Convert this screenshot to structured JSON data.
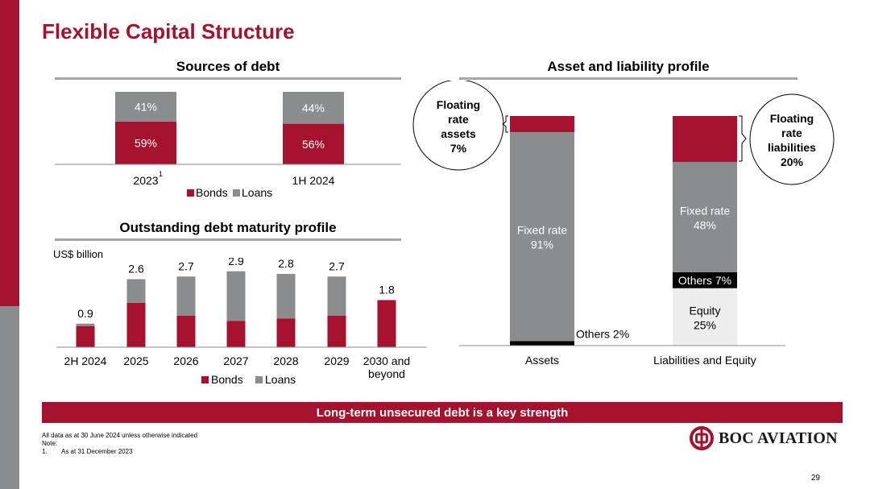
{
  "slide": {
    "title": "Flexible Capital Structure",
    "banner": "Long-term unsecured debt is a key strength",
    "footnotes": {
      "line1": "All data as at 30 June 2024 unless otherwise indicated",
      "line2": "Note:",
      "note_num": "1.",
      "note_text": "As at 31 December 2023"
    },
    "logo_text": "BOC AVIATION",
    "page_number": "29"
  },
  "colors": {
    "bonds": "#a6122d",
    "loans": "#8a8c8e",
    "others": "#000000",
    "equity": "#ededed",
    "fixed_rate": "#8a8c8e"
  },
  "chart_data": [
    {
      "type": "bar",
      "title": "Sources of debt",
      "stacked": true,
      "categories": [
        "2023",
        "1H 2024"
      ],
      "category_superscript": [
        "1",
        ""
      ],
      "series": [
        {
          "name": "Bonds",
          "values": [
            59,
            56
          ],
          "labels": [
            "59%",
            "56%"
          ]
        },
        {
          "name": "Loans",
          "values": [
            41,
            44
          ],
          "labels": [
            "41%",
            "44%"
          ]
        }
      ],
      "ylim": [
        0,
        100
      ],
      "legend": [
        "Bonds",
        "Loans"
      ]
    },
    {
      "type": "bar",
      "title": "Outstanding debt maturity profile",
      "stacked": true,
      "unit_label": "US$ billion",
      "categories": [
        "2H 2024",
        "2025",
        "2026",
        "2027",
        "2028",
        "2029",
        "2030 and beyond"
      ],
      "totals": [
        0.9,
        2.6,
        2.7,
        2.9,
        2.8,
        2.7,
        1.8
      ],
      "total_labels": [
        "0.9",
        "2.6",
        "2.7",
        "2.9",
        "2.8",
        "2.7",
        "1.8"
      ],
      "series": [
        {
          "name": "Bonds",
          "values": [
            0.8,
            1.7,
            1.2,
            1.0,
            1.1,
            1.2,
            1.8
          ]
        },
        {
          "name": "Loans",
          "values": [
            0.1,
            0.9,
            1.5,
            1.9,
            1.7,
            1.5,
            0.0
          ]
        }
      ],
      "ylim": [
        0,
        3.2
      ],
      "legend": [
        "Bonds",
        "Loans"
      ]
    },
    {
      "type": "bar",
      "title": "Asset and liability profile",
      "stacked": true,
      "categories": [
        "Assets",
        "Liabilities and Equity"
      ],
      "stacks": [
        [
          {
            "name": "Others",
            "value": 2,
            "label": "Others 2%"
          },
          {
            "name": "Fixed rate",
            "value": 91,
            "label_line1": "Fixed rate",
            "label_line2": "91%"
          },
          {
            "name": "Floating rate",
            "value": 7
          }
        ],
        [
          {
            "name": "Equity",
            "value": 25,
            "label_line1": "Equity",
            "label_line2": "25%"
          },
          {
            "name": "Others",
            "value": 7,
            "label": "Others 7%"
          },
          {
            "name": "Fixed rate",
            "value": 48,
            "label_line1": "Fixed rate",
            "label_line2": "48%"
          },
          {
            "name": "Floating rate",
            "value": 20
          }
        ]
      ],
      "callouts": [
        {
          "lines": [
            "Floating",
            "rate",
            "assets",
            "7%"
          ]
        },
        {
          "lines": [
            "Floating",
            "rate",
            "liabilities",
            "20%"
          ]
        }
      ],
      "ylim": [
        0,
        100
      ]
    }
  ]
}
